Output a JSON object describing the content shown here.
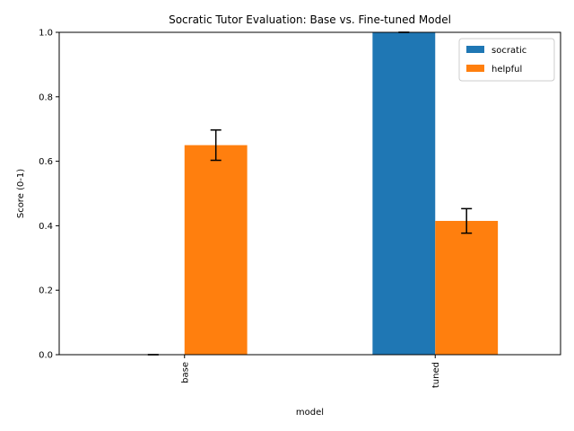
{
  "chart_data": {
    "type": "bar",
    "title": "Socratic Tutor Evaluation: Base vs. Fine-tuned Model",
    "xlabel": "model",
    "ylabel": "Score (0-1)",
    "categories": [
      "base",
      "tuned"
    ],
    "ylim": [
      0,
      1
    ],
    "yticks": [
      "0.0",
      "0.2",
      "0.4",
      "0.6",
      "0.8",
      "1.0"
    ],
    "series": [
      {
        "name": "socratic",
        "color": "#1f77b4",
        "values": [
          0.0,
          1.0
        ],
        "errors": [
          0.0,
          0.0
        ]
      },
      {
        "name": "helpful",
        "color": "#ff7f0e",
        "values": [
          0.65,
          0.415
        ],
        "errors": [
          0.047,
          0.038
        ]
      }
    ],
    "legend": "top-right",
    "grid": false
  }
}
